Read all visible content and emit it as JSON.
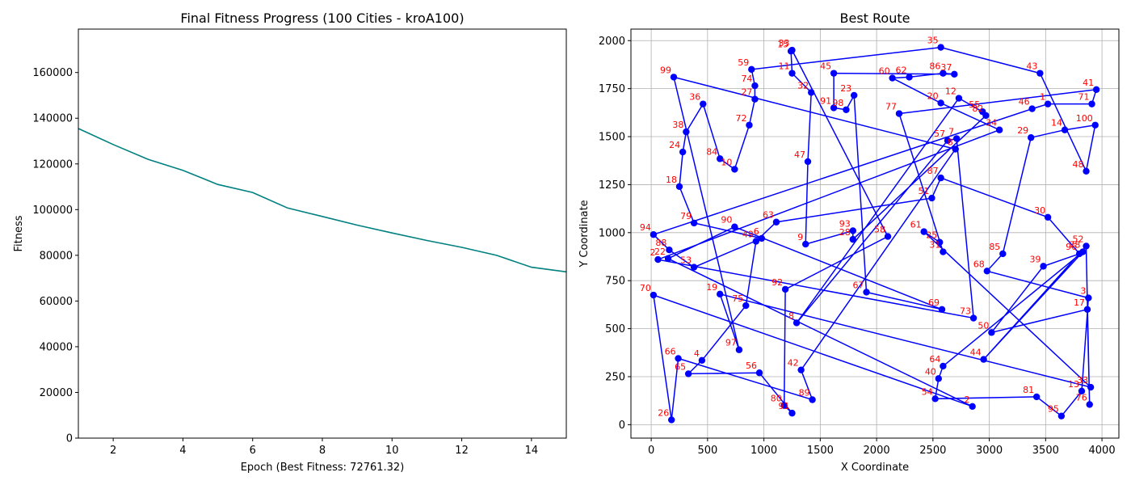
{
  "colors": {
    "fitness_line": "#008080",
    "route": "#0000ff",
    "point_labels": "#ff0000",
    "grid": "#b0b0b0"
  },
  "chart_data": [
    {
      "type": "line",
      "title": "Final Fitness Progress (100 Cities - kroA100)",
      "xlabel": "Epoch (Best Fitness: 72761.32)",
      "ylabel": "Fitness",
      "grid": false,
      "xlim": [
        1,
        15
      ],
      "ylim": [
        0,
        179000
      ],
      "xticks": [
        2,
        4,
        6,
        8,
        10,
        12,
        14
      ],
      "yticks": [
        0,
        20000,
        40000,
        60000,
        80000,
        100000,
        120000,
        140000,
        160000
      ],
      "series": [
        {
          "x": [
            1,
            2,
            3,
            4,
            5,
            6,
            7,
            8,
            9,
            10,
            11,
            12,
            13,
            14,
            15
          ],
          "values": [
            135500,
            128500,
            122000,
            117200,
            111000,
            107500,
            100700,
            97000,
            93200,
            89800,
            86500,
            83500,
            80000,
            74800,
            72761
          ]
        }
      ]
    },
    {
      "type": "line",
      "title": "Best Route",
      "xlabel": "X Coordinate",
      "ylabel": "Y Coordinate",
      "grid": true,
      "marker": "circle",
      "xlim": [
        -180,
        4150
      ],
      "ylim": [
        -70,
        2060
      ],
      "xticks": [
        0,
        500,
        1000,
        1500,
        2000,
        2500,
        3000,
        3500,
        4000
      ],
      "yticks": [
        0,
        250,
        500,
        750,
        1000,
        1250,
        1500,
        1750,
        2000
      ],
      "cities": [
        {
          "label": "94",
          "x": 20,
          "y": 990
        },
        {
          "label": "88",
          "x": 160,
          "y": 910
        },
        {
          "label": "53",
          "x": 380,
          "y": 820
        },
        {
          "label": "6",
          "x": 980,
          "y": 970
        },
        {
          "label": "99",
          "x": 200,
          "y": 1810
        },
        {
          "label": "97",
          "x": 780,
          "y": 390
        },
        {
          "label": "19",
          "x": 610,
          "y": 680
        },
        {
          "label": "33",
          "x": 1250,
          "y": 1950
        },
        {
          "label": "70",
          "x": 20,
          "y": 675
        },
        {
          "label": "2",
          "x": 60,
          "y": 860
        },
        {
          "label": "96",
          "x": 3800,
          "y": 890
        },
        {
          "label": "3",
          "x": 3880,
          "y": 660
        },
        {
          "label": "17",
          "x": 3870,
          "y": 600
        },
        {
          "label": "95",
          "x": 3640,
          "y": 45
        },
        {
          "label": "13",
          "x": 3820,
          "y": 175
        },
        {
          "label": "76",
          "x": 3890,
          "y": 105
        },
        {
          "label": "33",
          "x": 3900,
          "y": 195
        },
        {
          "label": "81",
          "x": 3420,
          "y": 145
        },
        {
          "label": "39",
          "x": 3480,
          "y": 825
        },
        {
          "label": "52",
          "x": 3860,
          "y": 930
        },
        {
          "label": "78",
          "x": 3830,
          "y": 900
        },
        {
          "label": "44",
          "x": 2950,
          "y": 340
        },
        {
          "label": "50",
          "x": 3020,
          "y": 480
        },
        {
          "label": "68",
          "x": 2980,
          "y": 800
        },
        {
          "label": "85",
          "x": 3120,
          "y": 890
        },
        {
          "label": "64",
          "x": 2590,
          "y": 305
        },
        {
          "label": "40",
          "x": 2550,
          "y": 240
        },
        {
          "label": "54",
          "x": 2520,
          "y": 135
        },
        {
          "label": "2",
          "x": 2850,
          "y": 95
        },
        {
          "label": "73",
          "x": 2860,
          "y": 555
        },
        {
          "label": "61",
          "x": 2420,
          "y": 1005
        },
        {
          "label": "25",
          "x": 2560,
          "y": 950
        },
        {
          "label": "31",
          "x": 2590,
          "y": 900
        },
        {
          "label": "87",
          "x": 2570,
          "y": 1285
        },
        {
          "label": "51",
          "x": 2490,
          "y": 1180
        },
        {
          "label": "63",
          "x": 1110,
          "y": 1055
        },
        {
          "label": "30",
          "x": 3520,
          "y": 1080
        },
        {
          "label": "92",
          "x": 1190,
          "y": 705
        },
        {
          "label": "8",
          "x": 1290,
          "y": 530
        },
        {
          "label": "42",
          "x": 1330,
          "y": 285
        },
        {
          "label": "89",
          "x": 1430,
          "y": 130
        },
        {
          "label": "80",
          "x": 1180,
          "y": 100
        },
        {
          "label": "91",
          "x": 1250,
          "y": 60
        },
        {
          "label": "4",
          "x": 450,
          "y": 335
        },
        {
          "label": "65",
          "x": 330,
          "y": 265
        },
        {
          "label": "56",
          "x": 960,
          "y": 270
        },
        {
          "label": "75",
          "x": 840,
          "y": 620
        },
        {
          "label": "66",
          "x": 240,
          "y": 345
        },
        {
          "label": "26",
          "x": 180,
          "y": 25
        },
        {
          "label": "22",
          "x": 150,
          "y": 865
        },
        {
          "label": "90",
          "x": 740,
          "y": 1030
        },
        {
          "label": "49",
          "x": 930,
          "y": 955
        },
        {
          "label": "79",
          "x": 380,
          "y": 1050
        },
        {
          "label": "18",
          "x": 250,
          "y": 1240
        },
        {
          "label": "24",
          "x": 280,
          "y": 1420
        },
        {
          "label": "38",
          "x": 310,
          "y": 1525
        },
        {
          "label": "36",
          "x": 460,
          "y": 1670
        },
        {
          "label": "84",
          "x": 610,
          "y": 1385
        },
        {
          "label": "10",
          "x": 740,
          "y": 1330
        },
        {
          "label": "72",
          "x": 870,
          "y": 1560
        },
        {
          "label": "27",
          "x": 920,
          "y": 1695
        },
        {
          "label": "74",
          "x": 920,
          "y": 1765
        },
        {
          "label": "59",
          "x": 890,
          "y": 1850
        },
        {
          "label": "15",
          "x": 1240,
          "y": 1945
        },
        {
          "label": "11",
          "x": 1250,
          "y": 1830
        },
        {
          "label": "32",
          "x": 1420,
          "y": 1730
        },
        {
          "label": "47",
          "x": 1390,
          "y": 1370
        },
        {
          "label": "9",
          "x": 1370,
          "y": 940
        },
        {
          "label": "93",
          "x": 1790,
          "y": 1010
        },
        {
          "label": "28",
          "x": 1790,
          "y": 965
        },
        {
          "label": "58",
          "x": 2100,
          "y": 980
        },
        {
          "label": "67",
          "x": 1910,
          "y": 690
        },
        {
          "label": "69",
          "x": 2580,
          "y": 600
        },
        {
          "label": "45",
          "x": 1620,
          "y": 1830
        },
        {
          "label": "60",
          "x": 2140,
          "y": 1805
        },
        {
          "label": "62",
          "x": 2290,
          "y": 1810
        },
        {
          "label": "86",
          "x": 2590,
          "y": 1830
        },
        {
          "label": "37",
          "x": 2690,
          "y": 1825
        },
        {
          "label": "35",
          "x": 2570,
          "y": 1965
        },
        {
          "label": "91",
          "x": 1620,
          "y": 1650
        },
        {
          "label": "98",
          "x": 1730,
          "y": 1640
        },
        {
          "label": "23",
          "x": 1800,
          "y": 1715
        },
        {
          "label": "77",
          "x": 2200,
          "y": 1620
        },
        {
          "label": "20",
          "x": 2570,
          "y": 1675
        },
        {
          "label": "12",
          "x": 2730,
          "y": 1700
        },
        {
          "label": "55",
          "x": 2940,
          "y": 1630
        },
        {
          "label": "82",
          "x": 2970,
          "y": 1610
        },
        {
          "label": "34",
          "x": 3090,
          "y": 1535
        },
        {
          "label": "57",
          "x": 2630,
          "y": 1480
        },
        {
          "label": "7",
          "x": 2710,
          "y": 1490
        },
        {
          "label": "8",
          "x": 2700,
          "y": 1435
        },
        {
          "label": "43",
          "x": 3450,
          "y": 1830
        },
        {
          "label": "46",
          "x": 3380,
          "y": 1645
        },
        {
          "label": "1",
          "x": 3520,
          "y": 1670
        },
        {
          "label": "41",
          "x": 3950,
          "y": 1745
        },
        {
          "label": "71",
          "x": 3910,
          "y": 1670
        },
        {
          "label": "100",
          "x": 3940,
          "y": 1560
        },
        {
          "label": "14",
          "x": 3670,
          "y": 1535
        },
        {
          "label": "29",
          "x": 3370,
          "y": 1495
        },
        {
          "label": "48",
          "x": 3860,
          "y": 1320
        }
      ],
      "route_order": [
        "94",
        "88",
        "53",
        "6",
        "79",
        "18",
        "24",
        "38",
        "36",
        "84",
        "10",
        "72",
        "27",
        "74",
        "59",
        "35",
        "43",
        "48",
        "100",
        "14",
        "29",
        "85",
        "68",
        "3",
        "13",
        "95",
        "81",
        "54",
        "40",
        "64",
        "78",
        "44",
        "52",
        "76",
        "17",
        "50",
        "39",
        "96",
        "30",
        "87",
        "51",
        "63",
        "49",
        "75",
        "4",
        "65",
        "56",
        "91",
        "80",
        "92",
        "58",
        "33",
        "15",
        "11",
        "32",
        "47",
        "9",
        "93",
        "28",
        "82",
        "55",
        "12",
        "8",
        "57",
        "7",
        "73",
        "2",
        "34",
        "20",
        "60",
        "62",
        "86",
        "37",
        "45",
        "91",
        "98",
        "23",
        "67",
        "69",
        "90",
        "22",
        "2",
        "70",
        "26",
        "66",
        "89",
        "42",
        "8",
        "99",
        "97",
        "19",
        "33",
        "61",
        "25",
        "31",
        "77",
        "41",
        "71",
        "1",
        "46",
        "94"
      ]
    }
  ]
}
